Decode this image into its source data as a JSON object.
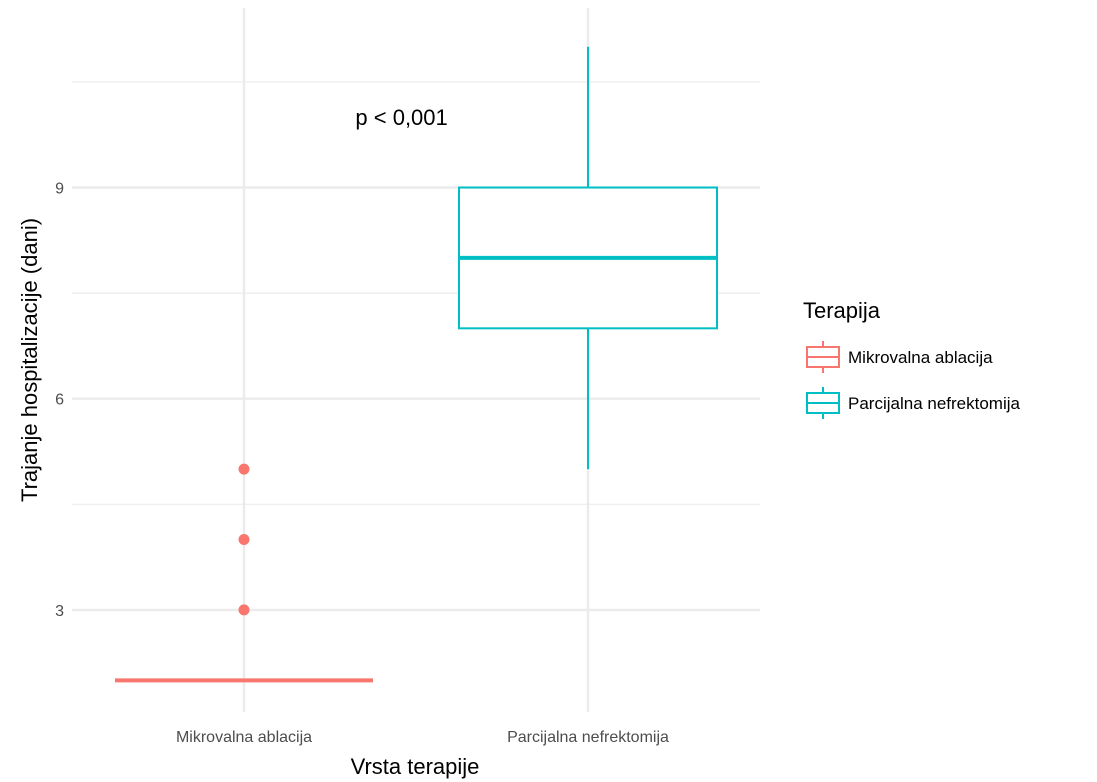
{
  "chart_data": {
    "type": "boxplot",
    "title": "",
    "xlabel": "Vrsta terapije",
    "ylabel": "Trajanje hospitalizacije (dani)",
    "ylim": [
      1.55,
      11.55
    ],
    "y_ticks": [
      3,
      6,
      9
    ],
    "y_tick_labels": [
      "3",
      "6",
      "9"
    ],
    "y_minor_gridlines": [
      4.5,
      7.5,
      10.5
    ],
    "grid": true,
    "categories": [
      "Mikrovalna ablacija",
      "Parcijalna nefrektomija"
    ],
    "boxes": [
      {
        "category": "Mikrovalna ablacija",
        "min": 2,
        "q1": 2,
        "median": 2,
        "q3": 2,
        "max": 2,
        "outliers": [
          3,
          4,
          5
        ],
        "color": "#F8766D"
      },
      {
        "category": "Parcijalna nefrektomija",
        "min": 5,
        "q1": 7,
        "median": 8,
        "q3": 9,
        "max": 11,
        "outliers": [],
        "color": "#00BFC4"
      }
    ],
    "annotation": {
      "text": "p < 0,001",
      "x_between_categories": 0.4,
      "y": 10
    },
    "legend": {
      "title": "Terapija",
      "position": "right",
      "entries": [
        "Mikrovalna ablacija",
        "Parcijalna nefrektomija"
      ]
    }
  }
}
